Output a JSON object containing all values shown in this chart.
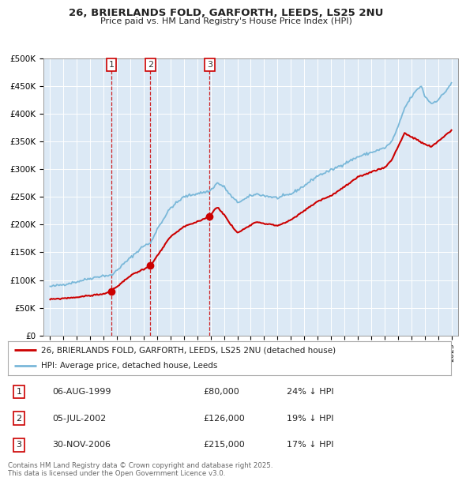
{
  "title_line1": "26, BRIERLANDS FOLD, GARFORTH, LEEDS, LS25 2NU",
  "title_line2": "Price paid vs. HM Land Registry's House Price Index (HPI)",
  "plot_bg_color": "#dce9f5",
  "ylim": [
    0,
    500000
  ],
  "yticks": [
    0,
    50000,
    100000,
    150000,
    200000,
    250000,
    300000,
    350000,
    400000,
    450000,
    500000
  ],
  "ytick_labels": [
    "£0",
    "£50K",
    "£100K",
    "£150K",
    "£200K",
    "£250K",
    "£300K",
    "£350K",
    "£400K",
    "£450K",
    "£500K"
  ],
  "hpi_color": "#7ab8d9",
  "price_color": "#cc0000",
  "vline_color": "#cc0000",
  "sale_year_vals": [
    1999.583,
    2002.5,
    2006.917
  ],
  "sale_prices": [
    80000,
    126000,
    215000
  ],
  "sale_labels": [
    "1",
    "2",
    "3"
  ],
  "legend_label_price": "26, BRIERLANDS FOLD, GARFORTH, LEEDS, LS25 2NU (detached house)",
  "legend_label_hpi": "HPI: Average price, detached house, Leeds",
  "table_data": [
    [
      "1",
      "06-AUG-1999",
      "£80,000",
      "24% ↓ HPI"
    ],
    [
      "2",
      "05-JUL-2002",
      "£126,000",
      "19% ↓ HPI"
    ],
    [
      "3",
      "30-NOV-2006",
      "£215,000",
      "17% ↓ HPI"
    ]
  ],
  "footer_text": "Contains HM Land Registry data © Crown copyright and database right 2025.\nThis data is licensed under the Open Government Licence v3.0.",
  "xlim_start": 1994.5,
  "xlim_end": 2025.5,
  "hpi_anchors": {
    "1995.0": 88000,
    "1996.0": 92000,
    "1997.0": 97000,
    "1998.0": 103000,
    "1999.0": 108000,
    "1999.583": 108000,
    "2000.0": 118000,
    "2001.0": 140000,
    "2002.0": 162000,
    "2002.5": 166000,
    "2003.0": 192000,
    "2004.0": 230000,
    "2005.0": 250000,
    "2006.0": 256000,
    "2006.917": 260000,
    "2007.0": 262000,
    "2007.5": 275000,
    "2008.0": 268000,
    "2008.5": 252000,
    "2009.0": 240000,
    "2009.5": 245000,
    "2010.0": 252000,
    "2010.5": 255000,
    "2011.0": 252000,
    "2012.0": 248000,
    "2013.0": 255000,
    "2014.0": 270000,
    "2015.0": 288000,
    "2016.0": 298000,
    "2017.0": 310000,
    "2018.0": 322000,
    "2019.0": 330000,
    "2020.0": 338000,
    "2020.5": 348000,
    "2021.0": 375000,
    "2021.5": 410000,
    "2022.0": 430000,
    "2022.5": 445000,
    "2022.75": 450000,
    "2023.0": 432000,
    "2023.5": 418000,
    "2024.0": 425000,
    "2024.5": 438000,
    "2025.0": 455000
  },
  "price_anchors": {
    "1995.0": 65000,
    "1996.0": 67000,
    "1997.0": 69000,
    "1998.0": 72000,
    "1999.0": 75000,
    "1999.583": 80000,
    "2000.0": 88000,
    "2001.0": 108000,
    "2002.0": 120000,
    "2002.5": 126000,
    "2003.0": 143000,
    "2004.0": 178000,
    "2005.0": 196000,
    "2006.0": 205000,
    "2006.917": 215000,
    "2007.0": 218000,
    "2007.5": 232000,
    "2008.0": 218000,
    "2008.5": 200000,
    "2009.0": 185000,
    "2009.5": 192000,
    "2010.0": 200000,
    "2010.5": 205000,
    "2011.0": 202000,
    "2012.0": 198000,
    "2013.0": 208000,
    "2014.0": 225000,
    "2015.0": 242000,
    "2016.0": 252000,
    "2017.0": 268000,
    "2018.0": 285000,
    "2019.0": 295000,
    "2020.0": 303000,
    "2020.5": 315000,
    "2021.0": 340000,
    "2021.5": 365000,
    "2022.0": 358000,
    "2022.5": 352000,
    "2022.75": 348000,
    "2023.0": 345000,
    "2023.5": 340000,
    "2024.0": 350000,
    "2024.5": 360000,
    "2025.0": 370000
  }
}
